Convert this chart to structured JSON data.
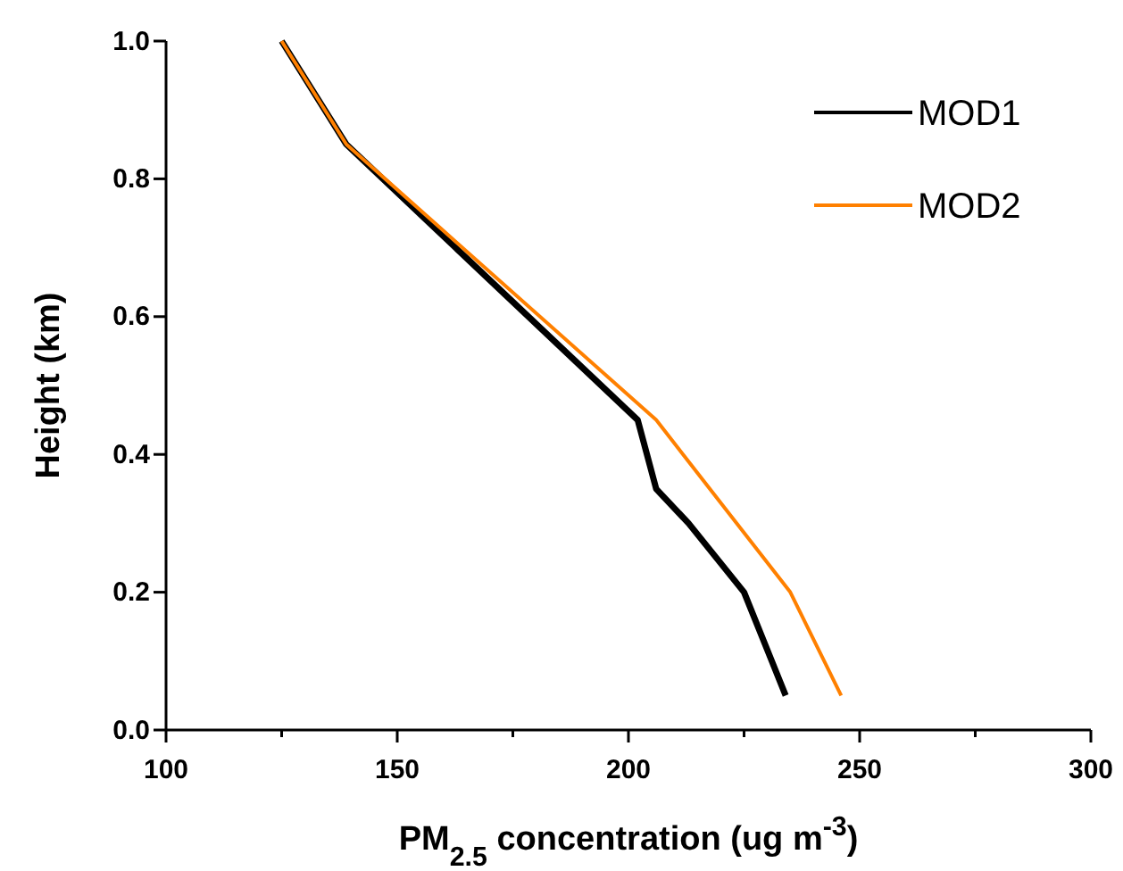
{
  "chart_data": {
    "type": "line",
    "xlabel": "PM$_{2.5}$ concentration (ug m$^{-3}$)",
    "ylabel": "Height (km)",
    "xlim": [
      100,
      300
    ],
    "ylim": [
      0,
      1
    ],
    "xticks": [
      100,
      {
        "value": 125,
        "label": null
      },
      150,
      {
        "value": 175,
        "label": null
      },
      200,
      {
        "value": 225,
        "label": null
      },
      250,
      {
        "value": 275,
        "label": null
      },
      300
    ],
    "yticks": [
      {
        "value": 0,
        "label": "0.0"
      },
      {
        "value": 0.2,
        "label": "0.2"
      },
      {
        "value": 0.4,
        "label": "0.4"
      },
      {
        "value": 0.6,
        "label": "0.6"
      },
      {
        "value": 0.8,
        "label": "0.8"
      },
      {
        "value": 1,
        "label": "1.0"
      }
    ],
    "legend": "top right",
    "grid": false,
    "series": [
      {
        "name": "MOD1",
        "color": "#000000",
        "x": [
          125,
          139,
          202,
          206,
          213,
          225,
          231,
          234
        ],
        "values": [
          1.0,
          0.85,
          0.45,
          0.35,
          0.3,
          0.2,
          0.1,
          0.05
        ]
      },
      {
        "name": "MOD2",
        "color": "#ff8000",
        "x": [
          125,
          139,
          206,
          235,
          246
        ],
        "values": [
          1.0,
          0.85,
          0.45,
          0.2,
          0.05
        ]
      }
    ]
  }
}
